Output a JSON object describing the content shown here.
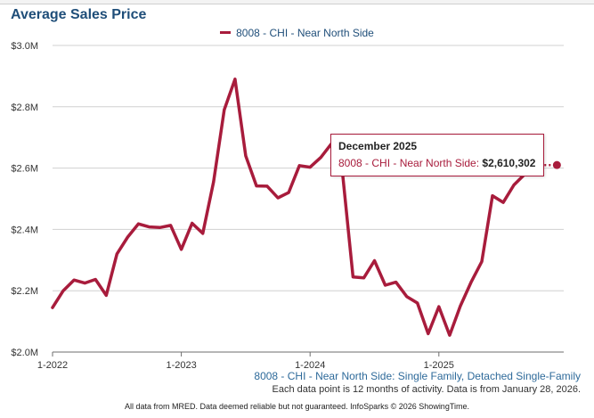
{
  "colors": {
    "series": "#a81c3c",
    "title": "#1f4e79",
    "grid": "#d0d0d0",
    "axis": "#6e6e6e"
  },
  "chart_data": {
    "type": "line",
    "title": "Average Sales Price",
    "xlabel": "",
    "ylabel": "",
    "ylim": [
      2.0,
      3.0
    ],
    "y_unit": "$M",
    "grid": true,
    "legend_position": "top-center",
    "x_tick_labels": [
      "1-2022",
      "1-2023",
      "1-2024",
      "1-2025"
    ],
    "y_tick_labels": [
      "$2.0M",
      "$2.2M",
      "$2.4M",
      "$2.6M",
      "$2.8M",
      "$3.0M"
    ],
    "series": [
      {
        "name": "8008 - CHI - Near North Side",
        "x_months": [
          0,
          1,
          2,
          3,
          4,
          5,
          6,
          7,
          8,
          9,
          10,
          11,
          12,
          13,
          14,
          15,
          16,
          17,
          18,
          19,
          20,
          21,
          22,
          23,
          24,
          25,
          26,
          27,
          28,
          29,
          30,
          31,
          32,
          33,
          34,
          35,
          36,
          37,
          38,
          39,
          40,
          41,
          42,
          43,
          44,
          45,
          46,
          47
        ],
        "values": [
          2.145,
          2.2,
          2.235,
          2.225,
          2.237,
          2.185,
          2.32,
          2.375,
          2.418,
          2.408,
          2.406,
          2.413,
          2.335,
          2.42,
          2.387,
          2.555,
          2.79,
          2.89,
          2.64,
          2.542,
          2.541,
          2.503,
          2.52,
          2.608,
          2.603,
          2.635,
          2.68,
          2.59,
          2.245,
          2.242,
          2.298,
          2.218,
          2.228,
          2.181,
          2.16,
          2.06,
          2.148,
          2.055,
          2.15,
          2.228,
          2.295,
          2.51,
          2.488,
          2.545,
          2.58,
          2.61,
          2.61,
          2.61
        ]
      }
    ]
  },
  "legend": {
    "label": "8008 - CHI - Near North Side"
  },
  "tooltip": {
    "title": "December 2025",
    "series_label": "8008 - CHI - Near North Side:",
    "value": "$2,610,302"
  },
  "subtitle_series": "8008 - CHI - Near North Side: Single Family, Detached Single-Family",
  "footnote": "Each data point is 12 months of activity. Data is from January 28, 2026.",
  "credits": "All data from MRED. Data deemed reliable but not guaranteed. InfoSparks © 2026 ShowingTime."
}
